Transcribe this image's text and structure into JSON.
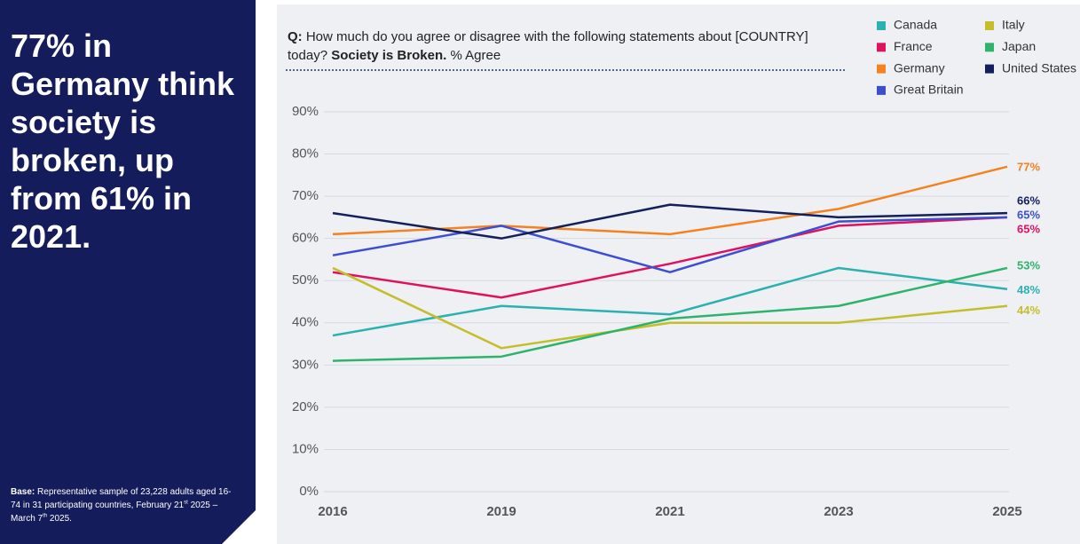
{
  "panel": {
    "headline": "77% in Germany think society is broken, up from 61% in 2021.",
    "base_label": "Base:",
    "base_parts": [
      "Representative sample of 23,228 adults aged 16-74 in 31 participating countries, February 21",
      "st",
      " 2025 – March 7",
      "th",
      " 2025."
    ]
  },
  "chart_data": {
    "type": "line",
    "question_label": "Q:",
    "question": "How much do you agree or disagree with the following statements about [COUNTRY] today?",
    "statement": "Society is Broken.",
    "measure": "% Agree",
    "categories": [
      "2016",
      "2019",
      "2021",
      "2023",
      "2025"
    ],
    "ylim": [
      0,
      90
    ],
    "yticks": [
      {
        "value": 0,
        "label": "0%"
      },
      {
        "value": 10,
        "label": "10%"
      },
      {
        "value": 20,
        "label": "20%"
      },
      {
        "value": 30,
        "label": "30%"
      },
      {
        "value": 40,
        "label": "40%"
      },
      {
        "value": 50,
        "label": "50%"
      },
      {
        "value": 60,
        "label": "60%"
      },
      {
        "value": 70,
        "label": "70%"
      },
      {
        "value": 80,
        "label": "80%"
      },
      {
        "value": 90,
        "label": "90%"
      }
    ],
    "grid": true,
    "legend": "top-right",
    "series": [
      {
        "name": "Canada",
        "color": "#2cb0b0",
        "values": [
          37,
          44,
          42,
          53,
          48
        ],
        "value_labels": [
          null,
          null,
          null,
          null,
          "48%"
        ]
      },
      {
        "name": "France",
        "color": "#e0115f",
        "values": [
          52,
          46,
          54,
          63,
          65
        ],
        "value_labels": [
          null,
          null,
          null,
          null,
          "65%"
        ]
      },
      {
        "name": "Germany",
        "color": "#f5821f",
        "values": [
          61,
          63,
          61,
          67,
          77
        ],
        "value_labels": [
          null,
          null,
          null,
          null,
          "77%"
        ]
      },
      {
        "name": "Great Britain",
        "color": "#3d4fd1",
        "values": [
          56,
          63,
          52,
          64,
          65
        ],
        "value_labels": [
          null,
          null,
          null,
          null,
          "65%"
        ]
      },
      {
        "name": "Italy",
        "color": "#c6bd2a",
        "values": [
          53,
          34,
          40,
          40,
          44
        ],
        "value_labels": [
          null,
          null,
          null,
          null,
          "44%"
        ]
      },
      {
        "name": "Japan",
        "color": "#2db36b",
        "values": [
          31,
          32,
          41,
          44,
          53
        ],
        "value_labels": [
          null,
          null,
          null,
          null,
          "53%"
        ]
      },
      {
        "name": "United States",
        "color": "#13205c",
        "values": [
          66,
          60,
          68,
          65,
          66
        ],
        "value_labels": [
          null,
          null,
          null,
          null,
          "66%"
        ]
      }
    ]
  }
}
